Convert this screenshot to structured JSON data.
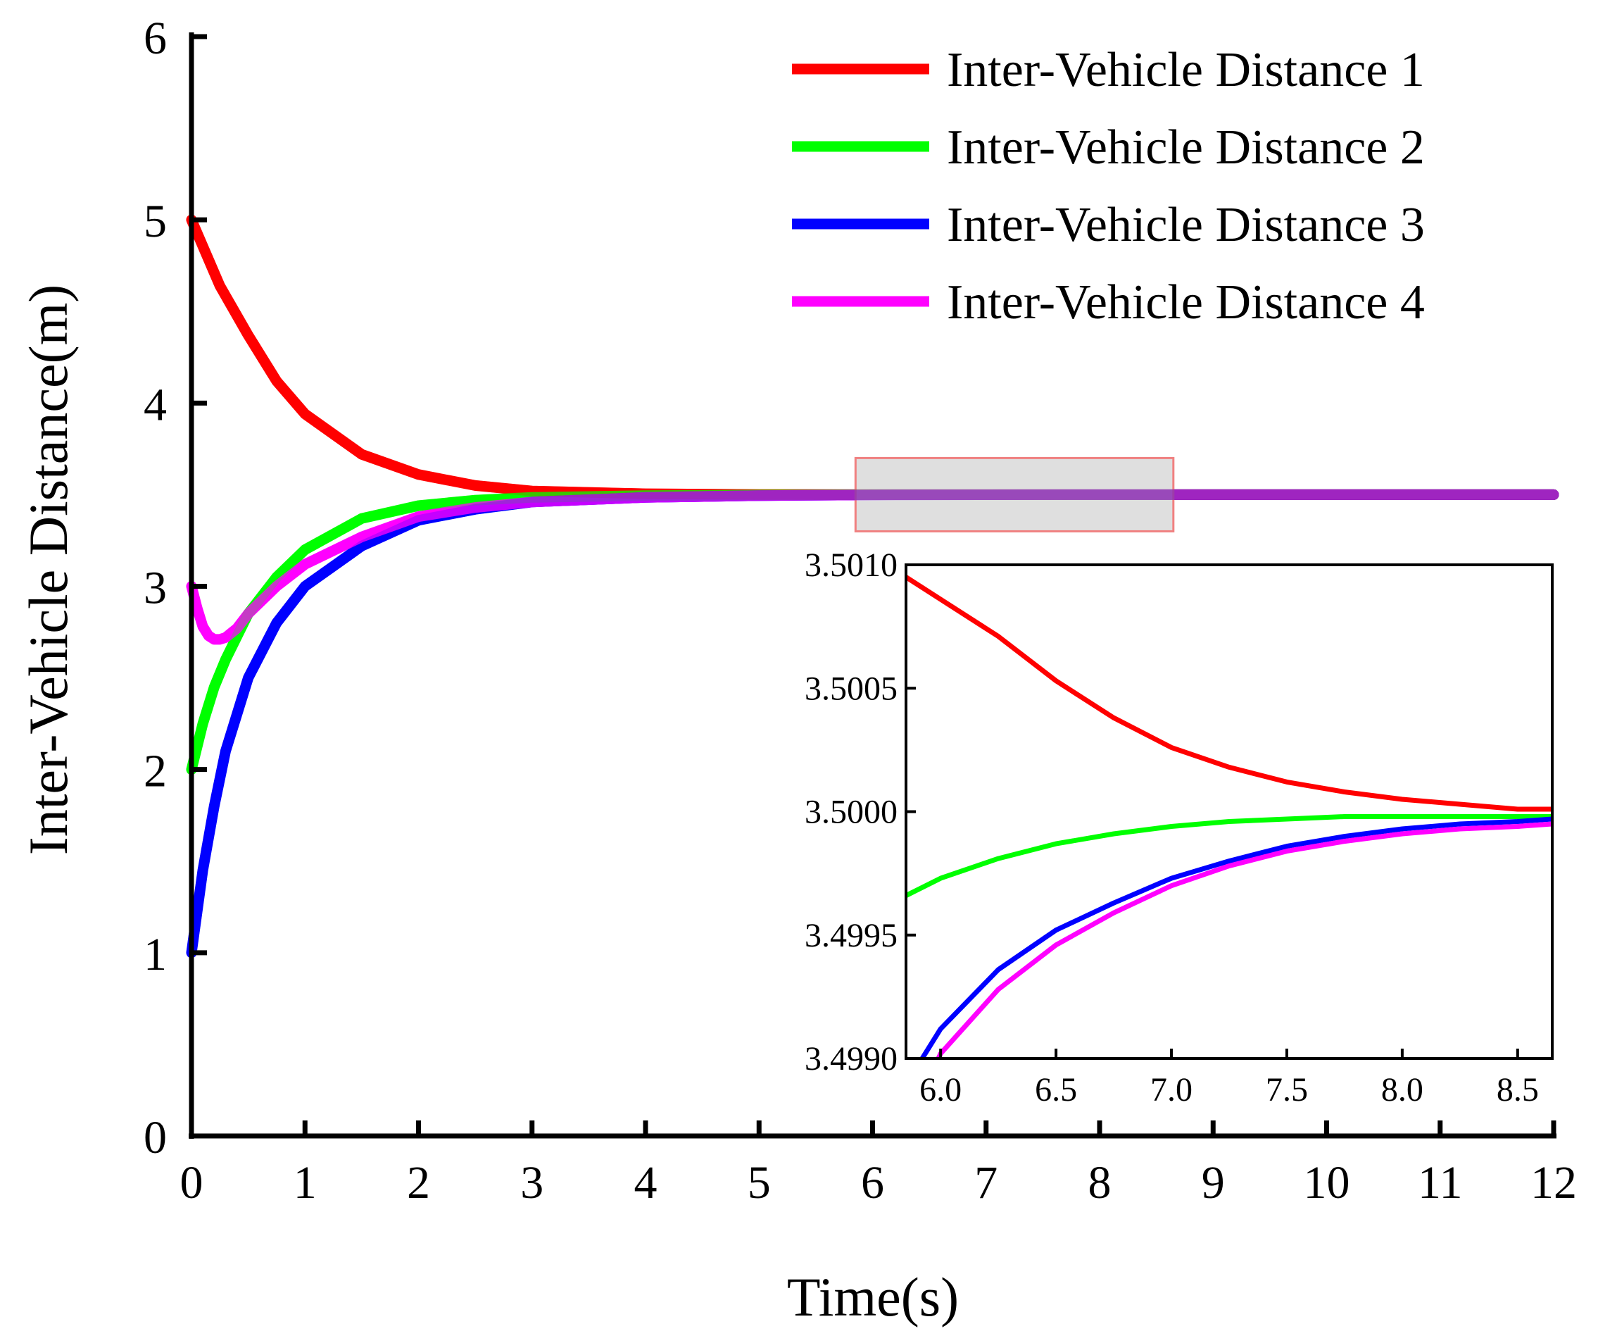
{
  "colors": {
    "series1": "#ff0000",
    "series2": "#00ff00",
    "series3": "#0000ff",
    "series4": "#ff00ff",
    "highlight_fill": "#dcdcdc",
    "highlight_stroke": "#f08080"
  },
  "chart_data": [
    {
      "id": "main",
      "type": "line",
      "title": "",
      "xlabel": "Time(s)",
      "ylabel": "Inter-Vehicle Distance(m)",
      "xlim": [
        0,
        12
      ],
      "ylim": [
        0,
        6
      ],
      "xticks": [
        0,
        1,
        2,
        3,
        4,
        5,
        6,
        7,
        8,
        9,
        10,
        11,
        12
      ],
      "xtick_labels": [
        "0",
        "1",
        "2",
        "3",
        "4",
        "5",
        "6",
        "7",
        "8",
        "9",
        "10",
        "11",
        "12"
      ],
      "yticks": [
        0,
        1,
        2,
        3,
        4,
        5,
        6
      ],
      "ytick_labels": [
        "0",
        "1",
        "2",
        "3",
        "4",
        "5",
        "6"
      ],
      "legend_position": "top-right",
      "series": [
        {
          "name": "Inter-Vehicle Distance 1",
          "color": "#ff0000",
          "x": [
            0,
            0.25,
            0.5,
            0.75,
            1,
            1.5,
            2,
            2.5,
            3,
            4,
            5,
            6,
            8,
            10,
            12
          ],
          "y": [
            5.0,
            4.64,
            4.37,
            4.12,
            3.94,
            3.72,
            3.61,
            3.55,
            3.52,
            3.505,
            3.501,
            3.5,
            3.5,
            3.5,
            3.5
          ]
        },
        {
          "name": "Inter-Vehicle Distance 2",
          "color": "#00ff00",
          "x": [
            0,
            0.1,
            0.2,
            0.3,
            0.5,
            0.75,
            1,
            1.5,
            2,
            2.5,
            3,
            4,
            5,
            6,
            8,
            10,
            12
          ],
          "y": [
            2.0,
            2.25,
            2.45,
            2.6,
            2.85,
            3.05,
            3.2,
            3.37,
            3.44,
            3.47,
            3.485,
            3.495,
            3.498,
            3.5,
            3.5,
            3.5,
            3.5
          ]
        },
        {
          "name": "Inter-Vehicle Distance 3",
          "color": "#0000ff",
          "x": [
            0,
            0.1,
            0.2,
            0.3,
            0.5,
            0.75,
            1,
            1.5,
            2,
            2.5,
            3,
            4,
            5,
            6,
            8,
            10,
            12
          ],
          "y": [
            1.0,
            1.45,
            1.8,
            2.1,
            2.5,
            2.8,
            3.0,
            3.22,
            3.36,
            3.42,
            3.46,
            3.485,
            3.495,
            3.499,
            3.5,
            3.5,
            3.5
          ]
        },
        {
          "name": "Inter-Vehicle Distance 4",
          "color": "#ff00ff",
          "x": [
            0,
            0.05,
            0.1,
            0.15,
            0.2,
            0.25,
            0.3,
            0.4,
            0.5,
            0.75,
            1,
            1.5,
            2,
            2.5,
            3,
            4,
            5,
            6,
            8,
            10,
            12
          ],
          "y": [
            3.0,
            2.88,
            2.78,
            2.73,
            2.71,
            2.71,
            2.72,
            2.77,
            2.85,
            3.0,
            3.12,
            3.27,
            3.38,
            3.43,
            3.46,
            3.485,
            3.495,
            3.499,
            3.5,
            3.5,
            3.5
          ]
        }
      ],
      "zoom_region": {
        "x": [
          5.85,
          8.65
        ],
        "y": [
          3.3,
          3.7
        ]
      }
    },
    {
      "id": "inset",
      "type": "line",
      "title": "",
      "xlabel": "",
      "ylabel": "",
      "xlim": [
        5.85,
        8.65
      ],
      "ylim": [
        3.499,
        3.501
      ],
      "xticks": [
        6.0,
        6.5,
        7.0,
        7.5,
        8.0,
        8.5
      ],
      "xtick_labels": [
        "6.0",
        "6.5",
        "7.0",
        "7.5",
        "8.0",
        "8.5"
      ],
      "yticks": [
        3.499,
        3.4995,
        3.5,
        3.5005,
        3.501
      ],
      "ytick_labels": [
        "3.4990",
        "3.4995",
        "3.5000",
        "3.5005",
        "3.5010"
      ],
      "series": [
        {
          "name": "Inter-Vehicle Distance 1",
          "color": "#ff0000",
          "x": [
            5.85,
            6.0,
            6.25,
            6.5,
            6.75,
            7.0,
            7.25,
            7.5,
            7.75,
            8.0,
            8.25,
            8.5,
            8.65
          ],
          "y": [
            3.50095,
            3.50086,
            3.50071,
            3.50053,
            3.50038,
            3.50026,
            3.50018,
            3.50012,
            3.50008,
            3.50005,
            3.50003,
            3.50001,
            3.50001
          ]
        },
        {
          "name": "Inter-Vehicle Distance 2",
          "color": "#00ff00",
          "x": [
            5.85,
            6.0,
            6.25,
            6.5,
            6.75,
            7.0,
            7.25,
            7.5,
            7.75,
            8.0,
            8.25,
            8.5,
            8.65
          ],
          "y": [
            3.49966,
            3.49973,
            3.49981,
            3.49987,
            3.49991,
            3.49994,
            3.49996,
            3.49997,
            3.49998,
            3.49998,
            3.49998,
            3.49998,
            3.49998
          ]
        },
        {
          "name": "Inter-Vehicle Distance 3",
          "color": "#0000ff",
          "x": [
            5.92,
            6.0,
            6.25,
            6.5,
            6.75,
            7.0,
            7.25,
            7.5,
            7.75,
            8.0,
            8.25,
            8.5,
            8.65
          ],
          "y": [
            3.499,
            3.49912,
            3.49936,
            3.49952,
            3.49963,
            3.49973,
            3.4998,
            3.49986,
            3.4999,
            3.49993,
            3.49995,
            3.49996,
            3.49997
          ]
        },
        {
          "name": "Inter-Vehicle Distance 4",
          "color": "#ff00ff",
          "x": [
            5.99,
            6.0,
            6.25,
            6.5,
            6.75,
            7.0,
            7.25,
            7.5,
            7.75,
            8.0,
            8.25,
            8.5,
            8.65
          ],
          "y": [
            3.499,
            3.49902,
            3.49928,
            3.49946,
            3.49959,
            3.4997,
            3.49978,
            3.49984,
            3.49988,
            3.49991,
            3.49993,
            3.49994,
            3.49995
          ]
        }
      ]
    }
  ]
}
